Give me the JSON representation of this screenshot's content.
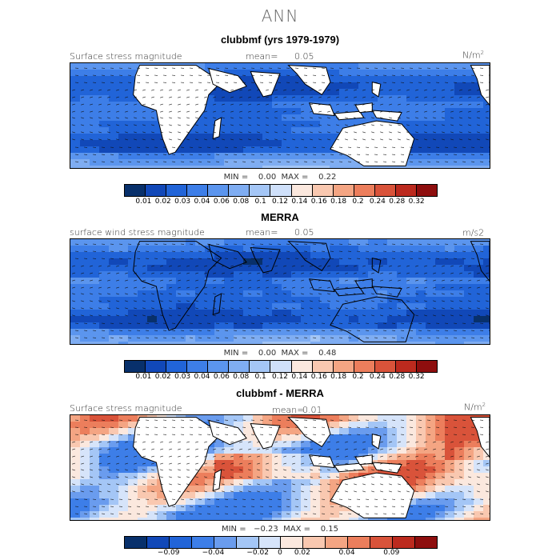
{
  "main_title": "ANN",
  "palette_abs": [
    "#08306b",
    "#1148b8",
    "#2164d8",
    "#3d7ee8",
    "#5b95ee",
    "#7fadf2",
    "#a4c6f6",
    "#cfe0fa",
    "#fbe8de",
    "#f9c8b0",
    "#f4a583",
    "#ec7e5c",
    "#d9533a",
    "#bc2a1e",
    "#8e0e0e"
  ],
  "palette_diff": [
    "#08306b",
    "#1148b8",
    "#2164d8",
    "#3d7ee8",
    "#6a9cee",
    "#a4c6f6",
    "#d6e4fa",
    "#fbe8de",
    "#f9c8b0",
    "#f4a583",
    "#ec7e5c",
    "#d9533a",
    "#bc2a1e",
    "#8e0e0e"
  ],
  "land_color": "#ffffff",
  "panels": [
    {
      "title": "clubbmf (yrs 1979-1979)",
      "field": "Surface stress magnitude",
      "mean_label": "mean=",
      "mean_value": "0.05",
      "units": "N/m",
      "units_sup": "2",
      "stats": "MIN =    0.00  MAX =    0.22",
      "ticks": [
        "0.01",
        "0.02",
        "0.03",
        "0.04",
        "0.06",
        "0.08",
        "0.1",
        "0.12",
        "0.14",
        "0.16",
        "0.18",
        "0.2",
        "0.24",
        "0.28",
        "0.32"
      ]
    },
    {
      "title": "MERRA",
      "field": "surface wind stress magnitude",
      "mean_label": "mean=",
      "mean_value": "0.05",
      "units": "m/s2",
      "units_sup": "",
      "stats": "MIN =    0.00  MAX =    0.48",
      "ticks": [
        "0.01",
        "0.02",
        "0.03",
        "0.04",
        "0.06",
        "0.08",
        "0.1",
        "0.12",
        "0.14",
        "0.16",
        "0.18",
        "0.2",
        "0.24",
        "0.28",
        "0.32"
      ]
    },
    {
      "title": "clubbmf - MERRA",
      "field": "Surface stress magnitude",
      "mean_label": "mean=",
      "mean_value": "0.01",
      "units": "N/m",
      "units_sup": "2",
      "stats": "MIN =   −0.23  MAX =    0.15",
      "ticks": [
        "−0.09",
        "−0.04",
        "−0.02",
        "0",
        "0.02",
        "0.04",
        "0.09"
      ]
    }
  ]
}
